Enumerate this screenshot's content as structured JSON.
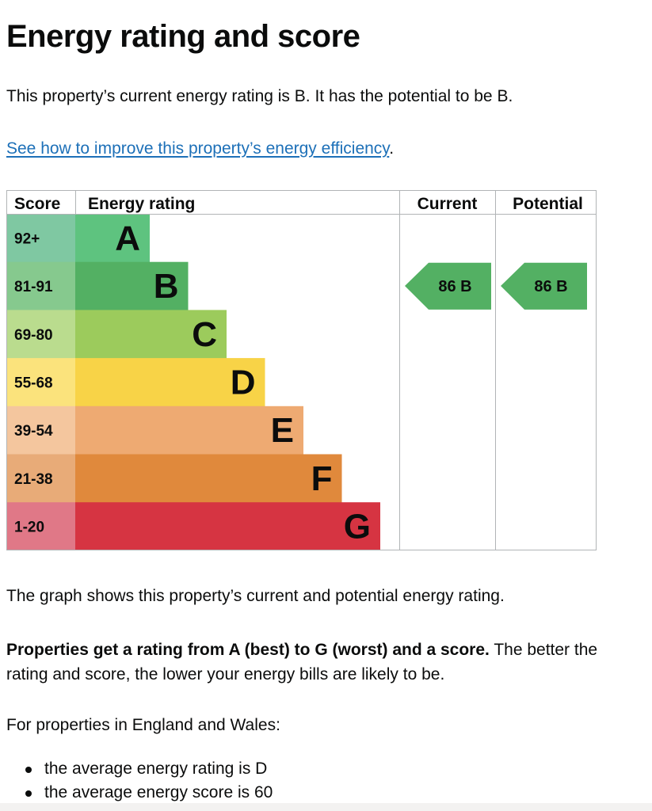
{
  "page": {
    "title": "Energy rating and score",
    "intro": "This property’s current energy rating is B. It has the potential to be B.",
    "improve_link": "See how to improve this property’s energy efficiency",
    "improve_suffix": ".",
    "graph_description": "The graph shows this property’s current and potential energy rating.",
    "ratings_bold": "Properties get a rating from A (best) to G (worst) and a score.",
    "ratings_rest": " The better the rating and score, the lower your energy bills are likely to be.",
    "regional_intro": "For properties in England and Wales:",
    "averages": [
      "the average energy rating is D",
      "the average energy score is 60"
    ]
  },
  "chart_data": {
    "type": "table",
    "headers": {
      "score": "Score",
      "rating": "Energy rating",
      "current": "Current",
      "potential": "Potential"
    },
    "bands": [
      {
        "score": "92+",
        "letter": "A",
        "color": "#5ec37f",
        "score_color": "#7fc8a2"
      },
      {
        "score": "81-91",
        "letter": "B",
        "color": "#53b063",
        "score_color": "#86c98e"
      },
      {
        "score": "69-80",
        "letter": "C",
        "color": "#9ccb5c",
        "score_color": "#badc8e"
      },
      {
        "score": "55-68",
        "letter": "D",
        "color": "#f8d347",
        "score_color": "#fbe37c"
      },
      {
        "score": "39-54",
        "letter": "E",
        "color": "#eeaa72",
        "score_color": "#f4c69e"
      },
      {
        "score": "21-38",
        "letter": "F",
        "color": "#e0893c",
        "score_color": "#e8ab78"
      },
      {
        "score": "1-20",
        "letter": "G",
        "color": "#d63442",
        "score_color": "#e07887"
      }
    ],
    "current": {
      "score": 86,
      "letter": "B",
      "label": "86  B",
      "color": "#53b063"
    },
    "potential": {
      "score": 86,
      "letter": "B",
      "label": "86  B",
      "color": "#53b063"
    }
  }
}
